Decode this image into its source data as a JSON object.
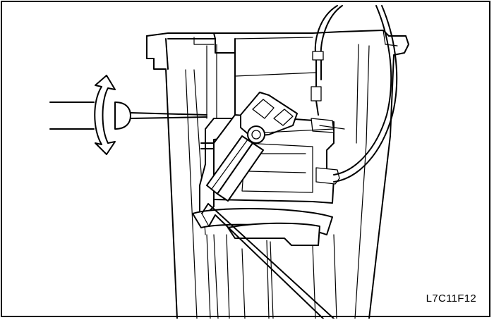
{
  "figure": {
    "code_label": "L7C11F12"
  },
  "colors": {
    "line": "#000000",
    "background": "#ffffff"
  },
  "icons": [
    "rotate-arrow-icon",
    "screwdriver-icon"
  ]
}
